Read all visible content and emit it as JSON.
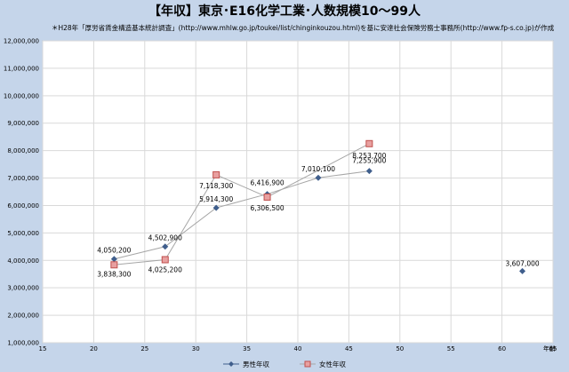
{
  "title": "【年収】東京･E16化学工業･人数規模10～99人",
  "source_note": "＊H28年「厚労省賃金構造基本統計調査」(http://www.mhlw.go.jp/toukei/list/chinginkouzou.html)を基に安達社会保険労務士事務所(http://www.fp-s.co.jp)が作成",
  "colors": {
    "frame": "#c5d5ea",
    "plot_bg": "#ffffff",
    "grid": "#d9d9d9",
    "male": "#3f5e8c",
    "female_fill": "#e8a0a0",
    "female_stroke": "#c0504d",
    "line": "#a6a6a6"
  },
  "chart_data": {
    "type": "scatter",
    "xlabel": "年齢",
    "ylabel": "",
    "xlim": [
      15,
      65
    ],
    "ylim": [
      1000000,
      12000000
    ],
    "x_ticks": [
      15,
      20,
      25,
      30,
      35,
      40,
      45,
      50,
      55,
      60,
      65
    ],
    "y_ticks": [
      1000000,
      2000000,
      3000000,
      4000000,
      5000000,
      6000000,
      7000000,
      8000000,
      9000000,
      10000000,
      11000000,
      12000000
    ],
    "x_tick_labels": [
      "15",
      "20",
      "25",
      "30",
      "35",
      "40",
      "45",
      "50",
      "55",
      "60",
      "65"
    ],
    "y_tick_labels": [
      "1,000,000",
      "2,000,000",
      "3,000,000",
      "4,000,000",
      "5,000,000",
      "6,000,000",
      "7,000,000",
      "8,000,000",
      "9,000,000",
      "10,000,000",
      "11,000,000",
      "12,000,000"
    ],
    "grid": true,
    "legend_position": "bottom",
    "series": [
      {
        "name": "男性年収",
        "marker": "diamond",
        "points": [
          {
            "x": 22,
            "y": 4050200,
            "label": "4,050,200"
          },
          {
            "x": 27,
            "y": 4502900,
            "label": "4,502,900"
          },
          {
            "x": 32,
            "y": 5914300,
            "label": "5,914,300"
          },
          {
            "x": 37,
            "y": 6416900,
            "label": "6,416,900"
          },
          {
            "x": 42,
            "y": 7010100,
            "label": "7,010,100"
          },
          {
            "x": 47,
            "y": 7255900,
            "label": "7,255,900"
          },
          {
            "x": 62,
            "y": 3607000,
            "label": "3,607,000"
          }
        ]
      },
      {
        "name": "女性年収",
        "marker": "square",
        "points": [
          {
            "x": 22,
            "y": 3838300,
            "label": "3,838,300"
          },
          {
            "x": 27,
            "y": 4025200,
            "label": "4,025,200"
          },
          {
            "x": 32,
            "y": 7118300,
            "label": "7,118,300"
          },
          {
            "x": 37,
            "y": 6306500,
            "label": "6,306,500"
          },
          {
            "x": 47,
            "y": 8253700,
            "label": "8,253,700"
          }
        ]
      }
    ]
  }
}
